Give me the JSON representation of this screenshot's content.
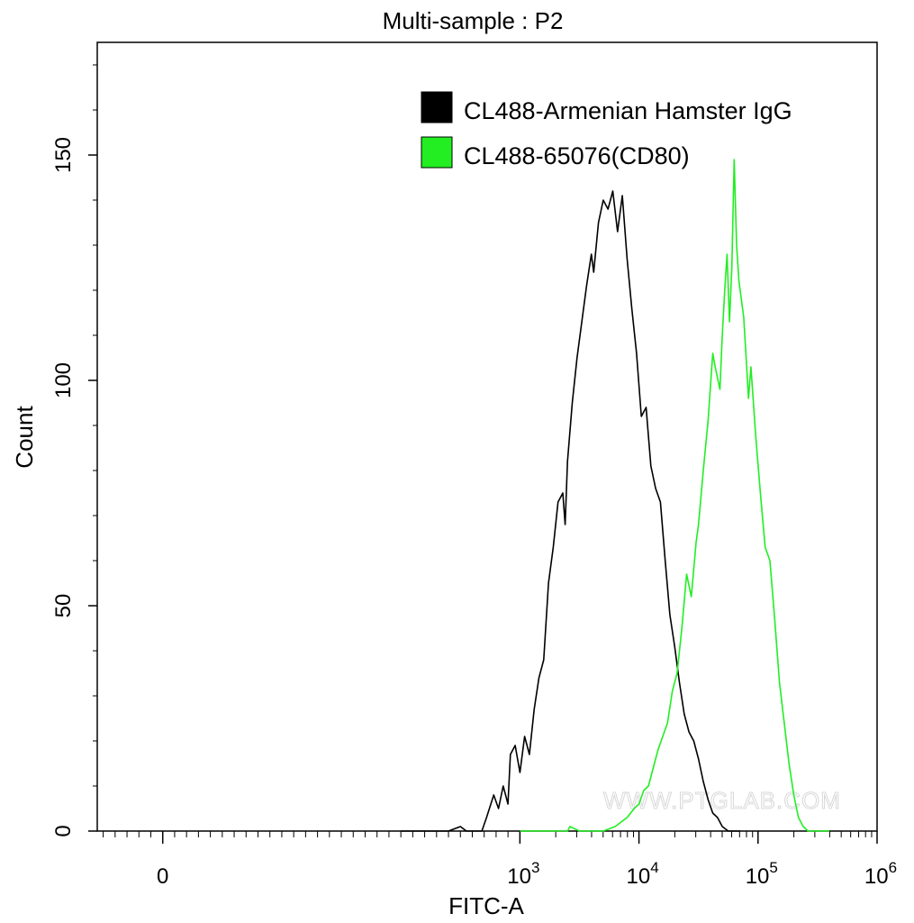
{
  "chart_data": {
    "type": "histogram-line",
    "title": "Multi-sample : P2",
    "xlabel": "FITC-A",
    "ylabel": "Count",
    "x_scale": "biexponential",
    "x_range_decades": [
      -0.55,
      6
    ],
    "ylim": [
      0,
      175
    ],
    "y_ticks": [
      0,
      50,
      100,
      150
    ],
    "y_tick_labels": [
      "0",
      "50",
      "100",
      "150"
    ],
    "x_ticks": [
      {
        "base": "0",
        "exp": ""
      },
      {
        "base": "10",
        "exp": "3"
      },
      {
        "base": "10",
        "exp": "4"
      },
      {
        "base": "10",
        "exp": "5"
      },
      {
        "base": "10",
        "exp": "6"
      }
    ],
    "legend_position": "top-right",
    "watermark": "WWW.PTGLAB.COM",
    "series": [
      {
        "name": "CL488-Armenian Hamster IgG",
        "color": "#000000",
        "points": [
          [
            2.0,
            0
          ],
          [
            2.1,
            0
          ],
          [
            2.25,
            0
          ],
          [
            2.4,
            0
          ],
          [
            2.5,
            1
          ],
          [
            2.55,
            0
          ],
          [
            2.68,
            0
          ],
          [
            2.72,
            3
          ],
          [
            2.78,
            8
          ],
          [
            2.82,
            5
          ],
          [
            2.86,
            10
          ],
          [
            2.9,
            6
          ],
          [
            2.92,
            17
          ],
          [
            2.96,
            19
          ],
          [
            3.0,
            13
          ],
          [
            3.04,
            21
          ],
          [
            3.08,
            17
          ],
          [
            3.12,
            27
          ],
          [
            3.16,
            34
          ],
          [
            3.2,
            38
          ],
          [
            3.24,
            55
          ],
          [
            3.28,
            63
          ],
          [
            3.32,
            73
          ],
          [
            3.36,
            75
          ],
          [
            3.38,
            68
          ],
          [
            3.4,
            82
          ],
          [
            3.44,
            95
          ],
          [
            3.48,
            105
          ],
          [
            3.52,
            113
          ],
          [
            3.56,
            121
          ],
          [
            3.6,
            128
          ],
          [
            3.62,
            124
          ],
          [
            3.66,
            135
          ],
          [
            3.7,
            140
          ],
          [
            3.74,
            138
          ],
          [
            3.78,
            142
          ],
          [
            3.82,
            133
          ],
          [
            3.86,
            141
          ],
          [
            3.9,
            127
          ],
          [
            3.94,
            116
          ],
          [
            3.98,
            106
          ],
          [
            4.02,
            92
          ],
          [
            4.06,
            94
          ],
          [
            4.1,
            81
          ],
          [
            4.14,
            76
          ],
          [
            4.18,
            73
          ],
          [
            4.22,
            60
          ],
          [
            4.26,
            48
          ],
          [
            4.3,
            41
          ],
          [
            4.34,
            33
          ],
          [
            4.38,
            26
          ],
          [
            4.42,
            22
          ],
          [
            4.46,
            20
          ],
          [
            4.5,
            16
          ],
          [
            4.54,
            11
          ],
          [
            4.58,
            7
          ],
          [
            4.62,
            4
          ],
          [
            4.66,
            3
          ],
          [
            4.7,
            1
          ],
          [
            4.75,
            0
          ],
          [
            4.85,
            0
          ]
        ]
      },
      {
        "name": "CL488-65076(CD80)",
        "color": "#22ee22",
        "points": [
          [
            3.0,
            0
          ],
          [
            3.3,
            0
          ],
          [
            3.4,
            0
          ],
          [
            3.42,
            1
          ],
          [
            3.5,
            0
          ],
          [
            3.7,
            0
          ],
          [
            3.8,
            1
          ],
          [
            3.9,
            3
          ],
          [
            3.96,
            5
          ],
          [
            4.0,
            6
          ],
          [
            4.04,
            9
          ],
          [
            4.08,
            10
          ],
          [
            4.12,
            14
          ],
          [
            4.16,
            18
          ],
          [
            4.2,
            21
          ],
          [
            4.24,
            24
          ],
          [
            4.28,
            31
          ],
          [
            4.32,
            35
          ],
          [
            4.36,
            45
          ],
          [
            4.4,
            57
          ],
          [
            4.44,
            52
          ],
          [
            4.48,
            64
          ],
          [
            4.5,
            68
          ],
          [
            4.54,
            80
          ],
          [
            4.58,
            91
          ],
          [
            4.62,
            106
          ],
          [
            4.64,
            103
          ],
          [
            4.68,
            98
          ],
          [
            4.7,
            110
          ],
          [
            4.72,
            120
          ],
          [
            4.74,
            128
          ],
          [
            4.76,
            113
          ],
          [
            4.78,
            125
          ],
          [
            4.8,
            149
          ],
          [
            4.82,
            130
          ],
          [
            4.84,
            122
          ],
          [
            4.88,
            114
          ],
          [
            4.9,
            105
          ],
          [
            4.92,
            96
          ],
          [
            4.94,
            103
          ],
          [
            4.98,
            88
          ],
          [
            5.02,
            75
          ],
          [
            5.06,
            63
          ],
          [
            5.1,
            60
          ],
          [
            5.14,
            47
          ],
          [
            5.18,
            33
          ],
          [
            5.22,
            24
          ],
          [
            5.26,
            15
          ],
          [
            5.3,
            8
          ],
          [
            5.34,
            3
          ],
          [
            5.38,
            1
          ],
          [
            5.42,
            0
          ],
          [
            5.6,
            0
          ]
        ]
      }
    ]
  }
}
